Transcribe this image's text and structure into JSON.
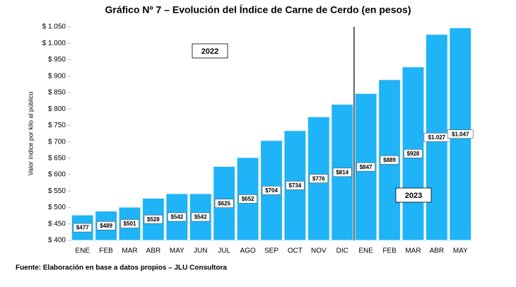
{
  "chart_data": {
    "type": "bar",
    "title": "Gráfico Nº 7 – Evolución del Índice de Carne de Cerdo (en pesos)",
    "y_label": "Valor índice por kilo al público",
    "source": "Fuente: Elaboración en base a datos propios – JLU Consultora",
    "categories": [
      "ENE",
      "FEB",
      "MAR",
      "ABR",
      "MAY",
      "JUN",
      "JUL",
      "AGO",
      "SEP",
      "OCT",
      "NOV",
      "DIC",
      "ENE",
      "FEB",
      "MAR",
      "ABR",
      "MAY"
    ],
    "values": [
      477,
      489,
      501,
      528,
      542,
      542,
      625,
      652,
      704,
      734,
      776,
      814,
      847,
      889,
      928,
      1027,
      1047
    ],
    "value_labels": [
      "$477",
      "$489",
      "$501",
      "$528",
      "$542",
      "$542",
      "$625",
      "$652",
      "$704",
      "$734",
      "$776",
      "$814",
      "$847",
      "$889",
      "$928",
      "$1.027",
      "$1.047"
    ],
    "color": "#1fb3f7",
    "ylim": [
      400,
      1050
    ],
    "yticks": [
      {
        "value": 400,
        "label": "$ 400"
      },
      {
        "value": 450,
        "label": "$ 450"
      },
      {
        "value": 500,
        "label": "$ 500"
      },
      {
        "value": 550,
        "label": "$ 550"
      },
      {
        "value": 600,
        "label": "$ 600"
      },
      {
        "value": 650,
        "label": "$ 650"
      },
      {
        "value": 700,
        "label": "$ 700"
      },
      {
        "value": 750,
        "label": "$ 750"
      },
      {
        "value": 800,
        "label": "$ 800"
      },
      {
        "value": 850,
        "label": "$ 850"
      },
      {
        "value": 900,
        "label": "$ 900"
      },
      {
        "value": 950,
        "label": "$ 950"
      },
      {
        "value": 1000,
        "label": "$ 1.000"
      },
      {
        "value": 1050,
        "label": "$ 1.050"
      }
    ],
    "annotations": [
      "2022",
      "2023"
    ],
    "grid": false
  }
}
